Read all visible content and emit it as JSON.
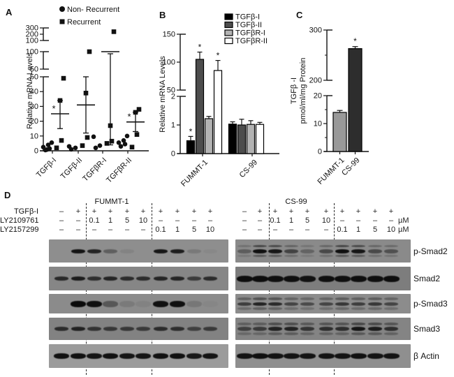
{
  "sig_symbol": "*",
  "chart_data": [
    {
      "panel": "A",
      "type": "scatter",
      "ylabel": "Relative mRNA Levels",
      "legend": [
        {
          "marker": "circle",
          "label": "Non- Recurrent"
        },
        {
          "marker": "square",
          "label": "Recurrent"
        }
      ],
      "categories": [
        "TGFβ-I",
        "TGFβ-II",
        "TGFβR-I",
        "TGFβR-II"
      ],
      "y_axis_segments": [
        {
          "range": [
            0,
            50
          ],
          "ticks": [
            0,
            10,
            20,
            30,
            40,
            50
          ]
        },
        {
          "range": [
            50,
            100
          ],
          "ticks": [
            50,
            100
          ]
        },
        {
          "range": [
            100,
            300
          ],
          "ticks": [
            100,
            200,
            300
          ]
        }
      ],
      "series": [
        {
          "name": "Non- Recurrent",
          "marker": "circle",
          "points": [
            [
              0.5,
              1.5,
              2.5,
              4,
              5.5,
              0.8
            ],
            [
              1,
              2,
              3
            ],
            [
              2,
              3.5,
              9.5
            ],
            [
              3,
              4.5,
              5.5,
              7,
              10
            ]
          ]
        },
        {
          "name": "Recurrent",
          "marker": "square",
          "points": [
            [
              2,
              7,
              34,
              49
            ],
            [
              3.5,
              9,
              39,
              100
            ],
            [
              5,
              6.5,
              17,
              240
            ],
            [
              2.5,
              11,
              26,
              28
            ]
          ]
        }
      ],
      "mean": [
        25,
        31,
        100,
        19.5
      ],
      "err_low": [
        15,
        12,
        4,
        13
      ],
      "err_high": [
        34,
        50,
        94,
        26
      ],
      "significant": [
        true,
        false,
        false,
        true
      ]
    },
    {
      "panel": "B",
      "type": "bar",
      "ylabel": "Relative mRNA Levels",
      "categories": [
        "FUMMT-1",
        "CS-99"
      ],
      "lower_ticks": [
        0,
        1,
        2
      ],
      "upper_ticks": [
        50,
        100,
        150
      ],
      "series": [
        {
          "name": "TGFβ-I",
          "color": "#000000",
          "values": [
            0.45,
            1.03
          ],
          "errors": [
            0.15,
            0.08
          ],
          "sig": [
            true,
            false
          ]
        },
        {
          "name": "TGFβ-II",
          "color": "#4d4d4d",
          "values": [
            105,
            1.0
          ],
          "errors": [
            13,
            0.2
          ],
          "sig": [
            true,
            false
          ]
        },
        {
          "name": "TGFβR-I",
          "color": "#b3b3b3",
          "values": [
            1.22,
            1.02
          ],
          "errors": [
            0.08,
            0.13
          ],
          "sig": [
            false,
            false
          ]
        },
        {
          "name": "TGFβR-II",
          "color": "#ffffff",
          "values": [
            85,
            1.02
          ],
          "errors": [
            18,
            0.07
          ],
          "sig": [
            true,
            false
          ]
        }
      ]
    },
    {
      "panel": "C",
      "type": "bar",
      "ylabel_line1": "TGFβ -I",
      "ylabel_line2": "pmol/ml/mg Protein",
      "categories": [
        "FUMMT-1",
        "CS-99"
      ],
      "values": [
        14,
        263
      ],
      "errors": [
        0.7,
        4
      ],
      "colors": [
        "#999999",
        "#2d2d2d"
      ],
      "sig": [
        false,
        true
      ],
      "lower_ticks": [
        0,
        10,
        20
      ],
      "lower_minor_ticks": [
        5,
        15
      ],
      "upper_ticks": [
        200,
        300
      ],
      "upper_minor_ticks": [
        250
      ]
    }
  ],
  "figure": {
    "panel_d": {
      "label": "D",
      "row_labels": [
        "TGFβ-I",
        "LY2109761",
        "LY2157299"
      ],
      "groups": [
        {
          "title": "FUMMT-1",
          "rows": [
            [
              "–",
              "+",
              "+",
              "+",
              "+",
              "+",
              "+",
              "+",
              "+",
              "+"
            ],
            [
              "–",
              "–",
              "0.1",
              "1",
              "5",
              "10",
              "–",
              "–",
              "–",
              "–"
            ],
            [
              "–",
              "–",
              "–",
              "–",
              "–",
              "–",
              "0.1",
              "1",
              "5",
              "10"
            ]
          ],
          "units": [
            "",
            "",
            ""
          ]
        },
        {
          "title": "CS-99",
          "rows": [
            [
              "–",
              "+",
              "+",
              "+",
              "+",
              "+",
              "+",
              "+",
              "+",
              "+"
            ],
            [
              "–",
              "–",
              "0.1",
              "1",
              "5",
              "10",
              "–",
              "–",
              "–",
              "–"
            ],
            [
              "–",
              "–",
              "–",
              "–",
              "–",
              "–",
              "0.1",
              "1",
              "5",
              "10"
            ]
          ],
          "units": [
            "",
            "µM",
            "µM"
          ]
        }
      ],
      "blot_labels": [
        "p-Smad2",
        "Smad2",
        "p-Smad3",
        "Smad3",
        "β Actin"
      ],
      "blots": {
        "left": [
          {
            "name": "p-Smad2",
            "bg": "#8e8e8e",
            "pattern": "single",
            "band_w": 20,
            "band_h": 6,
            "bands": [
              0,
              0.92,
              0.8,
              0.35,
              0.08,
              0,
              0.9,
              0.85,
              0.15,
              0.04
            ]
          },
          {
            "name": "Smad2",
            "bg": "#868686",
            "pattern": "single",
            "band_w": 20,
            "band_h": 6,
            "bands": [
              0.75,
              0.85,
              0.7,
              0.78,
              0.72,
              0.72,
              0.78,
              0.78,
              0.6,
              0.72
            ]
          },
          {
            "name": "p-Smad3",
            "bg": "#8b8b8b",
            "pattern": "single",
            "band_w": 22,
            "band_h": 9,
            "bands": [
              0,
              1,
              0.95,
              0.4,
              0.12,
              0.06,
              0.95,
              0.95,
              0.15,
              0.03
            ]
          },
          {
            "name": "Smad3",
            "bg": "#828282",
            "pattern": "single",
            "band_w": 20,
            "band_h": 6,
            "bands": [
              0.72,
              0.8,
              0.65,
              0.62,
              0.62,
              0.6,
              0.72,
              0.7,
              0.55,
              0.6
            ]
          },
          {
            "name": "β Actin",
            "bg": "#9b9b9b",
            "pattern": "single",
            "band_w": 22,
            "band_h": 8,
            "bands": [
              0.95,
              0.95,
              0.92,
              0.95,
              0.92,
              0.92,
              0.95,
              0.95,
              0.9,
              0.93
            ]
          }
        ],
        "right": [
          {
            "name": "p-Smad2",
            "bg": "#8a8a8a",
            "pattern": "doublet",
            "band_w": 20,
            "band_h": 6,
            "bands": [
              0.35,
              0.95,
              0.9,
              0.55,
              0.3,
              0.5,
              0.95,
              0.9,
              0.5,
              0.45
            ]
          },
          {
            "name": "Smad2",
            "bg": "#7d7d7d",
            "pattern": "single",
            "band_w": 23,
            "band_h": 9,
            "bands": [
              0.97,
              0.97,
              0.95,
              0.95,
              0.93,
              0.95,
              0.95,
              0.95,
              0.95,
              0.97
            ]
          },
          {
            "name": "p-Smad3",
            "bg": "#8c8c8c",
            "pattern": "doublet",
            "band_w": 20,
            "band_h": 5,
            "bands": [
              0.6,
              0.8,
              0.75,
              0.55,
              0.5,
              0.55,
              0.65,
              0.6,
              0.65,
              0.55
            ]
          },
          {
            "name": "Smad3",
            "bg": "#848484",
            "pattern": "doublet",
            "band_w": 20,
            "band_h": 6,
            "bands": [
              0.55,
              0.6,
              0.8,
              0.8,
              0.65,
              0.7,
              0.7,
              0.9,
              0.85,
              0.7
            ]
          },
          {
            "name": "β Actin",
            "bg": "#8f8f8f",
            "pattern": "single",
            "band_w": 23,
            "band_h": 8,
            "bands": [
              0.93,
              0.95,
              0.93,
              0.93,
              0.93,
              0.93,
              0.93,
              0.95,
              0.93,
              0.93
            ]
          }
        ]
      }
    }
  }
}
